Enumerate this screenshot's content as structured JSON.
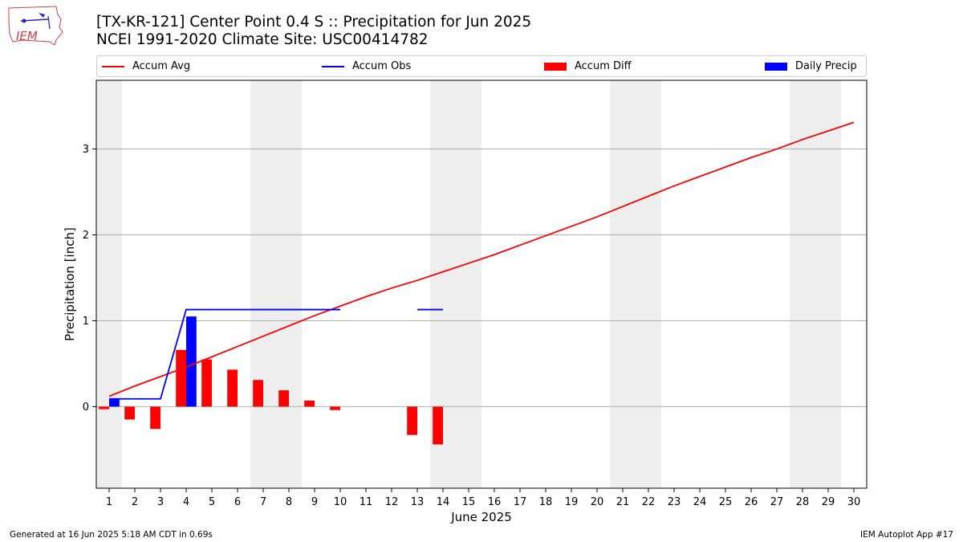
{
  "header": {
    "title": "[TX-KR-121] Center Point 0.4 S :: Precipitation for Jun 2025",
    "subtitle": "NCEI 1991-2020 Climate Site: USC00414782",
    "logo_text": "IEM"
  },
  "legend": {
    "entries": [
      {
        "label": "Accum Avg",
        "color": "#ff0000",
        "kind": "line"
      },
      {
        "label": "Accum Obs",
        "color": "#0000ff",
        "kind": "line"
      },
      {
        "label": "Accum Diff",
        "color": "#ff0000",
        "kind": "box"
      },
      {
        "label": "Daily Precip",
        "color": "#0000ff",
        "kind": "box"
      }
    ]
  },
  "footer": {
    "generated": "Generated at 16 Jun 2025 5:18 AM CDT in 0.69s",
    "app": "IEM Autoplot App #17"
  },
  "chart_data": {
    "type": "bar",
    "xlabel": "June 2025",
    "ylabel": "Precipitation [inch]",
    "xlim": [
      0.5,
      30.5
    ],
    "ylim": [
      -0.95,
      3.8
    ],
    "yticks": [
      0,
      1,
      2,
      3
    ],
    "xticks": [
      1,
      2,
      3,
      4,
      5,
      6,
      7,
      8,
      9,
      10,
      11,
      12,
      13,
      14,
      15,
      16,
      17,
      18,
      19,
      20,
      21,
      22,
      23,
      24,
      25,
      26,
      27,
      28,
      29,
      30
    ],
    "grid": "y",
    "legend_position": "top",
    "weekend_shading": [
      [
        0.5,
        1.5
      ],
      [
        6.5,
        8.5
      ],
      [
        13.5,
        15.5
      ],
      [
        20.5,
        22.5
      ],
      [
        27.5,
        29.5
      ]
    ],
    "days": [
      1,
      2,
      3,
      4,
      5,
      6,
      7,
      8,
      9,
      10,
      11,
      12,
      13,
      14,
      15,
      16,
      17,
      18,
      19,
      20,
      21,
      22,
      23,
      24,
      25,
      26,
      27,
      28,
      29,
      30
    ],
    "series": [
      {
        "name": "Accum Avg",
        "type": "line",
        "color": "#ff0000",
        "values": [
          0.12,
          0.24,
          0.35,
          0.46,
          0.58,
          0.7,
          0.82,
          0.94,
          1.06,
          1.17,
          1.28,
          1.38,
          1.47,
          1.57,
          1.67,
          1.77,
          1.88,
          1.99,
          2.1,
          2.21,
          2.33,
          2.45,
          2.57,
          2.68,
          2.79,
          2.9,
          3.0,
          3.11,
          3.21,
          3.31
        ]
      },
      {
        "name": "Accum Obs",
        "type": "line",
        "color": "#0000ff",
        "values": [
          0.09,
          0.09,
          0.09,
          1.13,
          1.13,
          1.13,
          1.13,
          1.13,
          1.13,
          1.13,
          null,
          null,
          1.13,
          1.13,
          null,
          null,
          null,
          null,
          null,
          null,
          null,
          null,
          null,
          null,
          null,
          null,
          null,
          null,
          null,
          null
        ]
      },
      {
        "name": "Accum Diff",
        "type": "bar",
        "color": "#ff0000",
        "values": [
          -0.03,
          -0.15,
          -0.26,
          0.66,
          0.55,
          0.43,
          0.31,
          0.19,
          0.07,
          -0.04,
          null,
          null,
          -0.33,
          -0.44,
          null,
          null,
          null,
          null,
          null,
          null,
          null,
          null,
          null,
          null,
          null,
          null,
          null,
          null,
          null,
          null
        ]
      },
      {
        "name": "Daily Precip",
        "type": "bar",
        "color": "#0000ff",
        "values": [
          0.09,
          0,
          0,
          1.05,
          0,
          0,
          0,
          0,
          0,
          0,
          null,
          null,
          0,
          0,
          null,
          null,
          null,
          null,
          null,
          null,
          null,
          null,
          null,
          null,
          null,
          null,
          null,
          null,
          null,
          null
        ]
      }
    ]
  }
}
